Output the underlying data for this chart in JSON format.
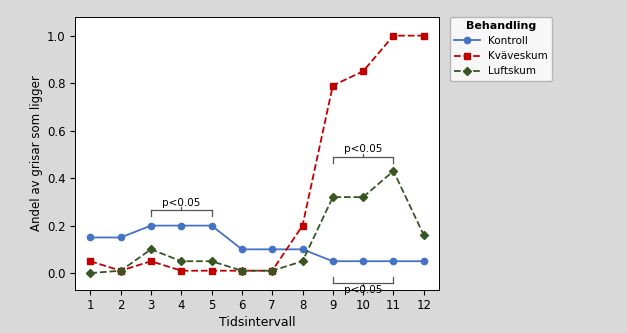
{
  "x": [
    1,
    2,
    3,
    4,
    5,
    6,
    7,
    8,
    9,
    10,
    11,
    12
  ],
  "kontroll": [
    0.15,
    0.15,
    0.2,
    0.2,
    0.2,
    0.1,
    0.1,
    0.1,
    0.05,
    0.05,
    0.05,
    0.05
  ],
  "kvaveskum": [
    0.05,
    0.01,
    0.05,
    0.01,
    0.01,
    0.01,
    0.01,
    0.2,
    0.79,
    0.85,
    1.0,
    1.0
  ],
  "luftskum": [
    0.0,
    0.01,
    0.1,
    0.05,
    0.05,
    0.01,
    0.01,
    0.05,
    0.32,
    0.32,
    0.43,
    0.16
  ],
  "kontroll_color": "#4472c4",
  "kvaveskum_color": "#c00000",
  "luftskum_color": "#375623",
  "xlabel": "Tidsintervall",
  "ylabel": "Andel av grisar som ligger",
  "legend_title": "Behandling",
  "legend_labels": [
    "Kontroll",
    "Kväveskum",
    "Luftskum"
  ],
  "ylim": [
    -0.07,
    1.08
  ],
  "xlim": [
    0.5,
    12.5
  ],
  "yticks": [
    0.0,
    0.2,
    0.4,
    0.6,
    0.8,
    1.0
  ],
  "xticks": [
    1,
    2,
    3,
    4,
    5,
    6,
    7,
    8,
    9,
    10,
    11,
    12
  ],
  "bg_color": "#d9d9d9",
  "plot_bg_color": "#ffffff"
}
